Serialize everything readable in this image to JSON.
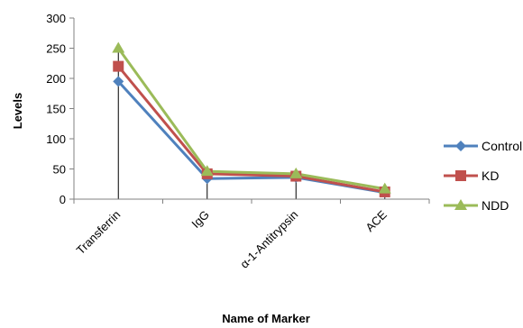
{
  "chart_data": {
    "type": "line",
    "categories": [
      "Transferrin",
      "IgG",
      "α-1-Antitrypsin",
      "ACE"
    ],
    "series": [
      {
        "name": "Control",
        "values": [
          195,
          34,
          36,
          11
        ],
        "color": "#4F81BD",
        "marker": "diamond"
      },
      {
        "name": "KD",
        "values": [
          220,
          42,
          38,
          12
        ],
        "color": "#C0504D",
        "marker": "square"
      },
      {
        "name": "NDD",
        "values": [
          250,
          46,
          42,
          17
        ],
        "color": "#9BBB59",
        "marker": "triangle"
      }
    ],
    "title": "",
    "xlabel": "Name of Marker",
    "ylabel": "Levels",
    "ylim": [
      0,
      300
    ],
    "yticks": [
      "0",
      "50",
      "100",
      "150",
      "200",
      "250",
      "300"
    ],
    "error_bars": true,
    "grid": false,
    "legend_position": "right"
  }
}
